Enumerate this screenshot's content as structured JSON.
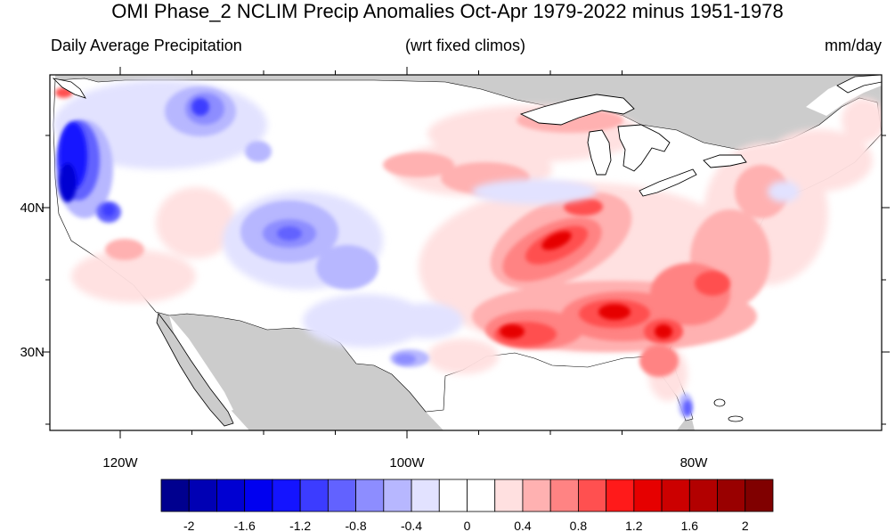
{
  "title": "OMI Phase_2 NCLIM Precip Anomalies Oct-Apr 1979-2022 minus 1951-1978",
  "subtitle_left": "Daily Average Precipitation",
  "subtitle_center": "(wrt fixed climos)",
  "subtitle_right": "mm/day",
  "lat_labels": [
    "40N",
    "30N"
  ],
  "lon_labels": [
    "120W",
    "100W",
    "80W"
  ],
  "colorbar": {
    "colors": [
      "#00008f",
      "#0000b4",
      "#0000d2",
      "#0000f0",
      "#1414ff",
      "#3c3cff",
      "#6262ff",
      "#8d8dff",
      "#b7b7ff",
      "#e2e2ff",
      "#ffffff",
      "#ffffff",
      "#ffe0e0",
      "#ffb1b1",
      "#ff8383",
      "#ff5050",
      "#ff1a1a",
      "#e60000",
      "#cc0000",
      "#b20000",
      "#990000",
      "#800000"
    ],
    "labels": [
      "-2",
      "-1.6",
      "-1.2",
      "-0.8",
      "-0.4",
      "0",
      "0.4",
      "0.8",
      "1.2",
      "1.6",
      "2"
    ]
  },
  "map_colors": {
    "land_gray": "#cccccc",
    "water": "#ffffff",
    "strong_blue": "#2a2ae6",
    "blue": "#6666ff",
    "light_blue": "#b7b7ff",
    "pale_blue": "#e2e2ff",
    "pale_red": "#ffe0e0",
    "light_red": "#ffb1b1",
    "red": "#ff5050",
    "strong_red": "#e60000"
  }
}
